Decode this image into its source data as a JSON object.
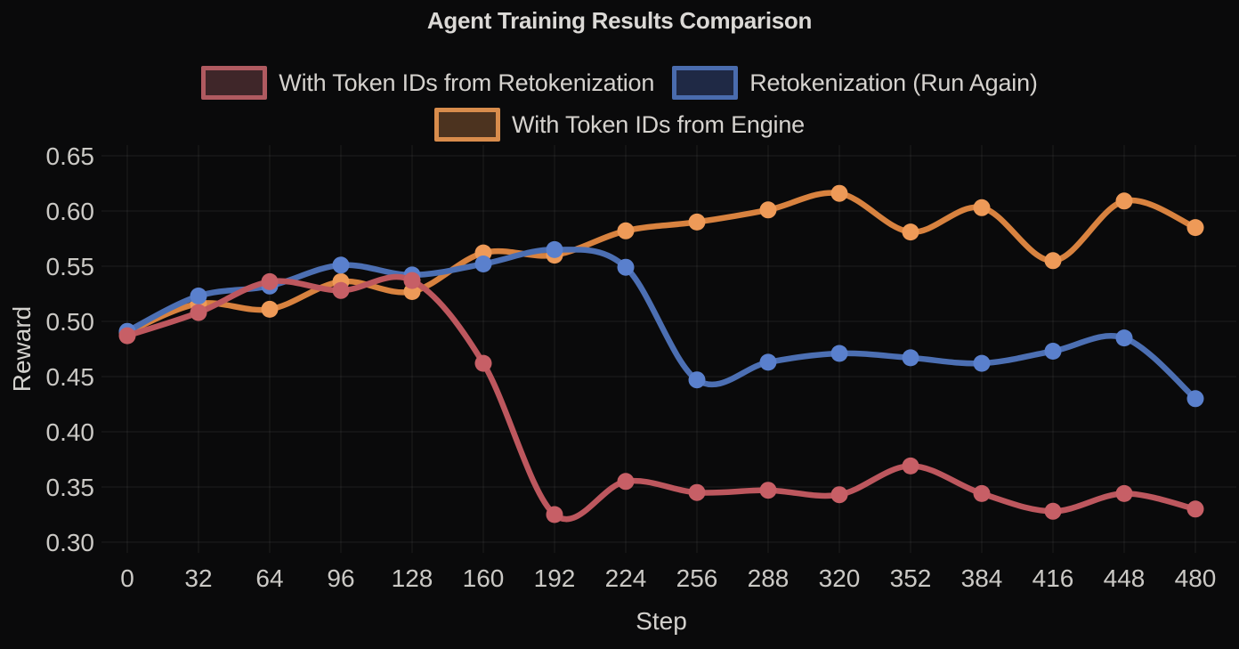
{
  "title": "Agent Training Results Comparison",
  "axes": {
    "x_label": "Step",
    "y_label": "Reward"
  },
  "legend": [
    {
      "label": "With Token IDs from Retokenization",
      "swatch_fill": "#3f2629",
      "swatch_border": "#b05a60"
    },
    {
      "label": "Retokenization (Run Again)",
      "swatch_fill": "#1f2945",
      "swatch_border": "#4a6cae"
    },
    {
      "label": "With Token IDs from Engine",
      "swatch_fill": "#4c331f",
      "swatch_border": "#d88c4c"
    }
  ],
  "chart_data": {
    "type": "line",
    "title": "Agent Training Results Comparison",
    "xlabel": "Step",
    "ylabel": "Reward",
    "x": [
      0,
      32,
      64,
      96,
      128,
      160,
      192,
      224,
      256,
      288,
      320,
      352,
      384,
      416,
      448,
      480
    ],
    "series": [
      {
        "name": "With Token IDs from Retokenization",
        "line_color": "#bd575e",
        "dot_color": "#c75f66",
        "values": [
          0.487,
          0.508,
          0.536,
          0.528,
          0.537,
          0.462,
          0.325,
          0.355,
          0.345,
          0.347,
          0.343,
          0.369,
          0.344,
          0.328,
          0.344,
          0.33
        ]
      },
      {
        "name": "Retokenization (Run Again)",
        "line_color": "#4c6fb3",
        "dot_color": "#5a80cd",
        "values": [
          0.491,
          0.523,
          0.532,
          0.551,
          0.542,
          0.552,
          0.565,
          0.549,
          0.447,
          0.463,
          0.471,
          0.467,
          0.462,
          0.473,
          0.485,
          0.43
        ]
      },
      {
        "name": "With Token IDs from Engine",
        "line_color": "#d8823f",
        "dot_color": "#ee9a58",
        "values": [
          0.49,
          0.516,
          0.511,
          0.536,
          0.527,
          0.562,
          0.56,
          0.582,
          0.59,
          0.601,
          0.616,
          0.581,
          0.603,
          0.555,
          0.609,
          0.585
        ]
      }
    ],
    "xticks": [
      0,
      32,
      64,
      96,
      128,
      160,
      192,
      224,
      256,
      288,
      320,
      352,
      384,
      416,
      448,
      480
    ],
    "yticks": [
      0.3,
      0.35,
      0.4,
      0.45,
      0.5,
      0.55,
      0.6,
      0.65
    ],
    "ylim": [
      0.295,
      0.655
    ],
    "grid": true,
    "legend_position": "top"
  }
}
